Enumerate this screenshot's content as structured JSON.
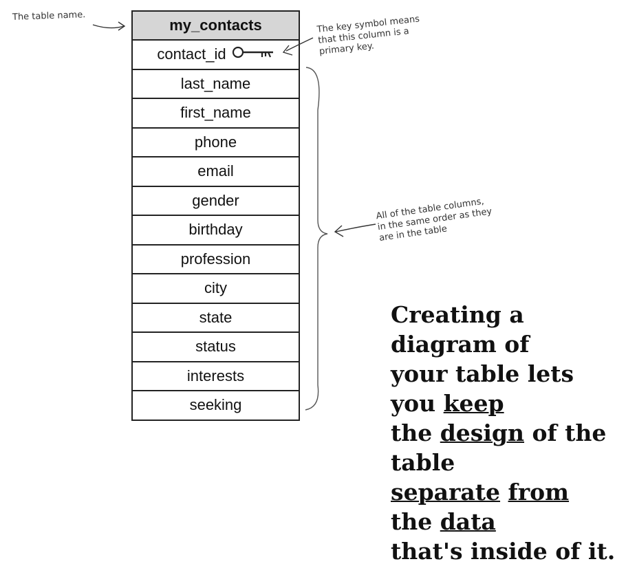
{
  "annotations": {
    "table_name": "The table name.",
    "key_line1": "The key symbol means",
    "key_line2": "that this column is a",
    "key_line3": "primary key.",
    "columns_line1": "All of the table columns,",
    "columns_line2": "in the same order as they",
    "columns_line3": "are in the table"
  },
  "table": {
    "name": "my_contacts",
    "columns": [
      "contact_id",
      "last_name",
      "first_name",
      "phone",
      "email",
      "gender",
      "birthday",
      "profession",
      "city",
      "state",
      "status",
      "interests",
      "seeking"
    ]
  },
  "callout": {
    "line1": "Creating a diagram of",
    "line2_a": "your table lets you ",
    "line2_u": "keep",
    "line3_a": "the ",
    "line3_u": "design",
    "line3_b": " of the table",
    "line4_u1": "separate",
    "line4_u2": "from",
    "line4_a": " the ",
    "line4_u3": "data",
    "line5": "that's inside of it."
  }
}
